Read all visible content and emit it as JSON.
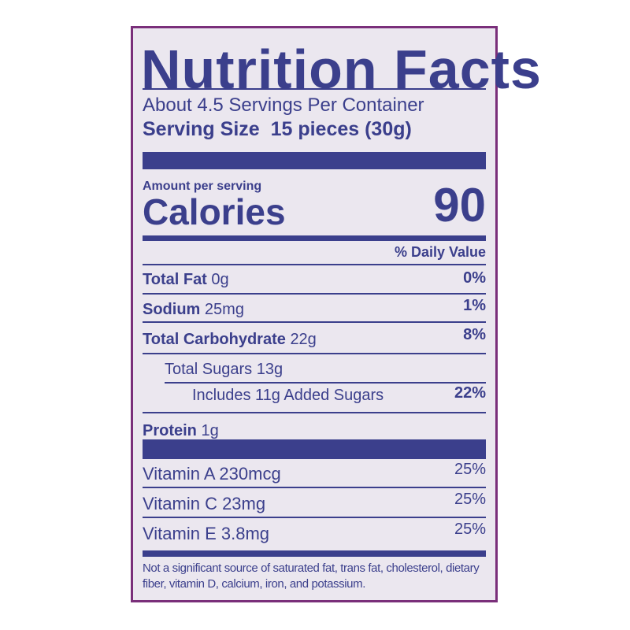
{
  "title": "Nutrition Facts",
  "servings_per_container": "About 4.5 Servings Per Container",
  "serving_size": {
    "label": "Serving Size",
    "value": "15 pieces (30g)"
  },
  "amount_per_serving": "Amount per serving",
  "calories": {
    "label": "Calories",
    "value": "90"
  },
  "daily_value_header": "% Daily Value",
  "nutrients": [
    {
      "name": "Total Fat",
      "amount": "0g",
      "dv": "0%"
    },
    {
      "name": "Sodium",
      "amount": "25mg",
      "dv": "1%"
    },
    {
      "name": "Total Carbohydrate",
      "amount": "22g",
      "dv": "8%"
    },
    {
      "name": "Total Sugars 13g",
      "amount": "",
      "dv": ""
    },
    {
      "name": "Includes 11g Added Sugars",
      "amount": "",
      "dv": "22%"
    },
    {
      "name": "Protein",
      "amount": "1g",
      "dv": ""
    }
  ],
  "vitamins": [
    {
      "name": "Vitamin A 230mcg",
      "dv": "25%"
    },
    {
      "name": "Vitamin C 23mg",
      "dv": "25%"
    },
    {
      "name": "Vitamin E 3.8mg",
      "dv": "25%"
    }
  ],
  "footnote": "Not a significant source of saturated fat, trans fat, cholesterol, dietary fiber, vitamin D, calcium, iron, and potassium.",
  "colors": {
    "ink": "#3b3f8c",
    "background": "#ebe7ef",
    "border": "#7a2f7a"
  }
}
